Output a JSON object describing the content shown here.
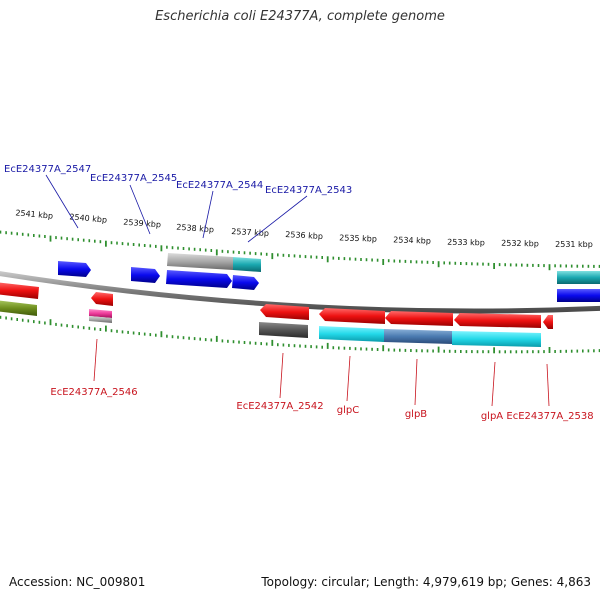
{
  "title": "Escherichia coli E24377A, complete genome",
  "footer": {
    "accession": "Accession: NC_009801",
    "topology": "Topology: circular; Length: 4,979,619 bp; Genes: 4,863"
  },
  "ticks": [
    {
      "label": "2541 kbp"
    },
    {
      "label": "2540 kbp"
    },
    {
      "label": "2539 kbp"
    },
    {
      "label": "2538 kbp"
    },
    {
      "label": "2537 kbp"
    },
    {
      "label": "2536 kbp"
    },
    {
      "label": "2535 kbp"
    },
    {
      "label": "2534 kbp"
    },
    {
      "label": "2533 kbp"
    },
    {
      "label": "2532 kbp"
    },
    {
      "label": "2531 kbp"
    }
  ],
  "gene_labels_top": [
    {
      "label": "EcE24377A_2547",
      "color": "#1a1aa6"
    },
    {
      "label": "EcE24377A_2545",
      "color": "#1a1aa6"
    },
    {
      "label": "EcE24377A_2544",
      "color": "#1a1aa6"
    },
    {
      "label": "EcE24377A_2543",
      "color": "#1a1aa6"
    }
  ],
  "gene_labels_bottom": [
    {
      "label": "EcE24377A_2546",
      "color": "#c8141e"
    },
    {
      "label": "EcE24377A_2542",
      "color": "#c8141e"
    },
    {
      "label": "glpC",
      "color": "#c8141e"
    },
    {
      "label": "glpB",
      "color": "#c8141e"
    },
    {
      "label": "glpA",
      "color": "#c8141e"
    },
    {
      "label": "EcE24377A_2538",
      "color": "#c8141e"
    }
  ],
  "colors": {
    "forward_gene": "#0a0aee",
    "reverse_gene": "#ee1111",
    "backbone": "#8a8a8a",
    "tick": "#2f8f2f",
    "cyan_feature": "#22d8e8",
    "grey_feature": "#a8a8a8",
    "olive_feature": "#6f8f1f",
    "pink_feature": "#ee3b9a"
  }
}
